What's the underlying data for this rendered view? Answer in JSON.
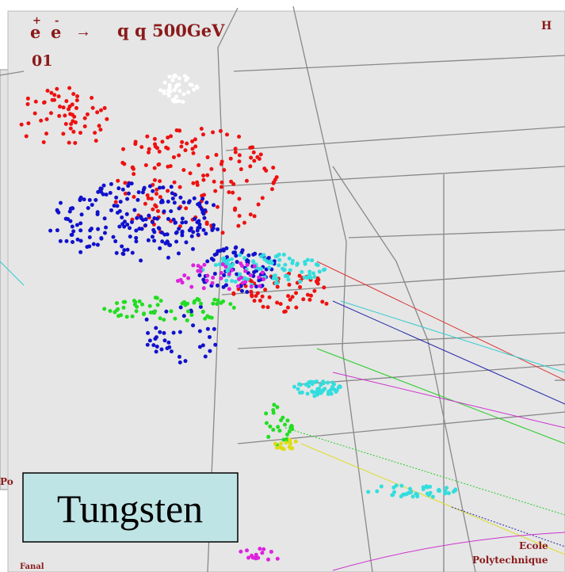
{
  "display": {
    "reaction": {
      "particle1": "e",
      "charge1": "+",
      "particle2": "e",
      "charge2": "-",
      "arrow": "→",
      "final_state": "q q 500GeV"
    },
    "event": "01",
    "corner": "H",
    "side": "Po",
    "label": "Tungsten",
    "institution": [
      "Ecole",
      "Polytechnique"
    ],
    "footer": "Fanal"
  }
}
